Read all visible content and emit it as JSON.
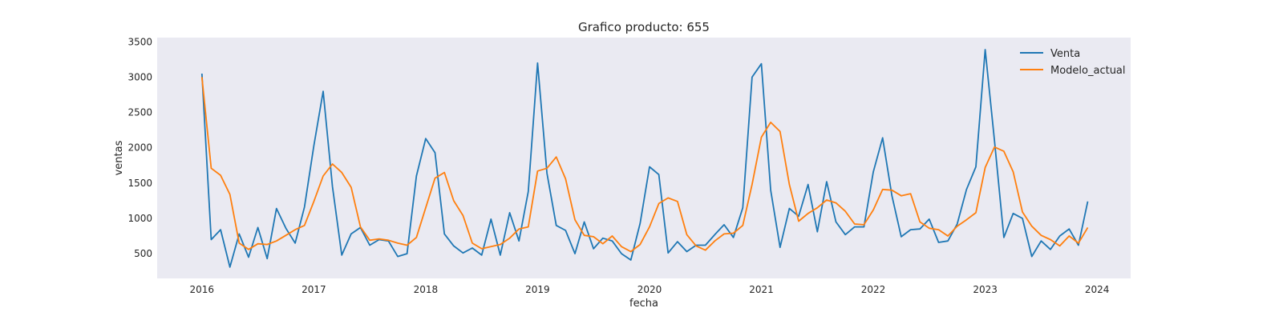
{
  "chart_data": {
    "type": "line",
    "title": "Grafico producto: 655",
    "xlabel": "fecha",
    "ylabel": "ventas",
    "x_start": "2016-01",
    "x_frequency": "monthly",
    "xlim": [
      2015.6,
      2024.3
    ],
    "ylim": [
      150,
      3560
    ],
    "xticks": [
      2016,
      2017,
      2018,
      2019,
      2020,
      2021,
      2022,
      2023,
      2024
    ],
    "yticks": [
      500,
      1000,
      1500,
      2000,
      2500,
      3000,
      3500
    ],
    "grid": false,
    "legend_position": "top-right",
    "background": "#eaeaf2",
    "series": [
      {
        "name": "Venta",
        "color": "#1f77b4",
        "values": [
          3050,
          700,
          840,
          310,
          780,
          450,
          870,
          430,
          1140,
          860,
          650,
          1160,
          2030,
          2800,
          1450,
          480,
          780,
          870,
          620,
          700,
          680,
          460,
          500,
          1600,
          2130,
          1930,
          780,
          610,
          510,
          580,
          480,
          990,
          480,
          1080,
          680,
          1380,
          3200,
          1640,
          900,
          830,
          500,
          950,
          570,
          720,
          680,
          500,
          410,
          930,
          1730,
          1620,
          510,
          670,
          530,
          620,
          620,
          770,
          910,
          730,
          1150,
          3000,
          3190,
          1400,
          590,
          1140,
          1030,
          1480,
          810,
          1520,
          950,
          770,
          880,
          880,
          1660,
          2140,
          1320,
          740,
          840,
          850,
          990,
          660,
          680,
          920,
          1410,
          1730,
          3390,
          2100,
          730,
          1070,
          1000,
          460,
          680,
          560,
          750,
          850,
          620,
          1240
        ]
      },
      {
        "name": "Modelo_actual",
        "color": "#ff7f0e",
        "values": [
          3000,
          1710,
          1610,
          1340,
          650,
          560,
          640,
          630,
          680,
          760,
          840,
          900,
          1240,
          1600,
          1770,
          1650,
          1440,
          880,
          690,
          710,
          690,
          650,
          620,
          730,
          1150,
          1570,
          1650,
          1250,
          1040,
          650,
          570,
          600,
          630,
          720,
          850,
          880,
          1670,
          1710,
          1870,
          1560,
          980,
          760,
          740,
          640,
          750,
          600,
          530,
          630,
          880,
          1210,
          1290,
          1240,
          770,
          610,
          550,
          680,
          780,
          790,
          900,
          1480,
          2150,
          2360,
          2230,
          1480,
          960,
          1070,
          1150,
          1260,
          1220,
          1100,
          920,
          910,
          1120,
          1410,
          1400,
          1320,
          1350,
          950,
          860,
          840,
          750,
          890,
          980,
          1080,
          1720,
          2010,
          1950,
          1660,
          1090,
          890,
          760,
          700,
          610,
          750,
          650,
          870
        ]
      }
    ]
  }
}
